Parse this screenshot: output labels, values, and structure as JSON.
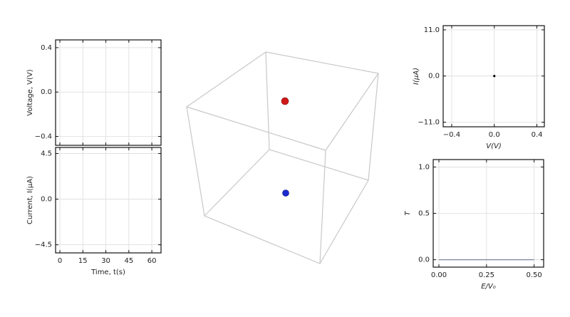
{
  "chart_data": [
    {
      "type": "line",
      "ylabel": "Voltage, V(V)",
      "xlim": [
        -2.8,
        66
      ],
      "xticks": [
        0,
        15,
        30,
        45,
        60
      ],
      "ylim": [
        -0.48,
        0.47
      ],
      "yticks": [
        {
          "value": 0.4,
          "label": "0.4"
        },
        {
          "value": 0,
          "label": "0.0"
        },
        {
          "value": -0.4,
          "label": "−0.4"
        }
      ],
      "grid": true
    },
    {
      "type": "line",
      "ylabel": "Current, I(μA)",
      "xlabel": "Time, t(s)",
      "xlim": [
        -2.8,
        66
      ],
      "xticks": [
        0,
        15,
        30,
        45,
        60
      ],
      "ylim": [
        -5.3,
        5.1
      ],
      "yticks": [
        {
          "value": 4.5,
          "label": "4.5"
        },
        {
          "value": 0,
          "label": "0.0"
        },
        {
          "value": -4.5,
          "label": "−4.5"
        }
      ],
      "grid": true
    },
    {
      "type": "scatter",
      "ylabel": "I(μA)",
      "xlabel": "V(V)",
      "xlim": [
        -0.48,
        0.47
      ],
      "xticks": [
        {
          "value": -0.4,
          "label": "−0.4"
        },
        {
          "value": 0,
          "label": "0.0"
        },
        {
          "value": 0.4,
          "label": "0.4"
        }
      ],
      "ylim": [
        -12.1,
        12
      ],
      "yticks": [
        {
          "value": 11,
          "label": "11.0"
        },
        {
          "value": 0,
          "label": "0.0"
        },
        {
          "value": -11,
          "label": "−11.0"
        }
      ],
      "x": [
        0
      ],
      "series": [
        {
          "color": "#000000",
          "values": [
            0
          ]
        }
      ],
      "grid": true
    },
    {
      "type": "line",
      "ylabel": "T",
      "xlabel": "E/V₀",
      "xlim": [
        -0.03,
        0.55
      ],
      "xticks": [
        {
          "value": 0,
          "label": "0.00"
        },
        {
          "value": 0.25,
          "label": "0.25"
        },
        {
          "value": 0.5,
          "label": "0.50"
        }
      ],
      "ylim": [
        -0.08,
        1.08
      ],
      "yticks": [
        {
          "value": 1,
          "label": "1.0"
        },
        {
          "value": 0.5,
          "label": "0.5"
        },
        {
          "value": 0,
          "label": "0.0"
        }
      ],
      "x": [
        0,
        0.5
      ],
      "series": [
        {
          "color": "#7f8ca3",
          "values": [
            0,
            0
          ]
        }
      ],
      "grid": true
    }
  ]
}
